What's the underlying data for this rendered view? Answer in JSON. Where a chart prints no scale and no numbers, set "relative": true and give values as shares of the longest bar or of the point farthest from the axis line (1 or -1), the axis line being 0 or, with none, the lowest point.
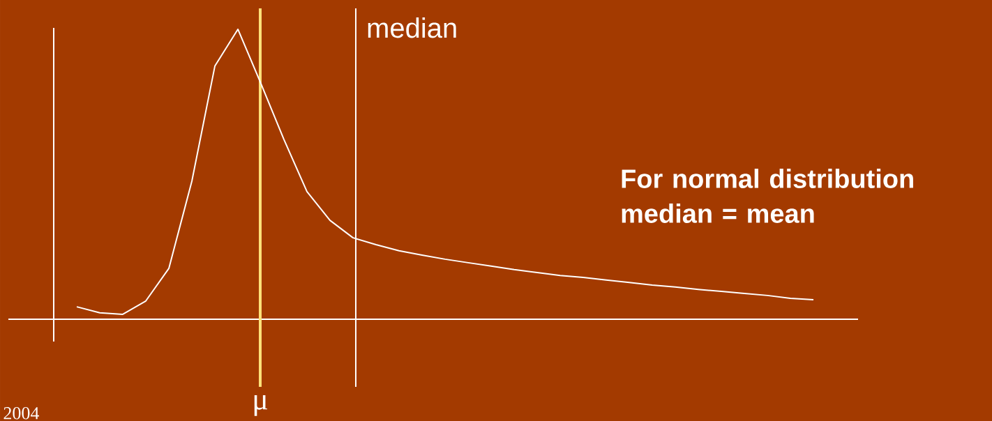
{
  "chart_data": {
    "type": "line",
    "relative": true,
    "categories": [
      null,
      null,
      null,
      null,
      null,
      null,
      null,
      null,
      null,
      null,
      null,
      null,
      null,
      null,
      null,
      null,
      null,
      null,
      null,
      null,
      null,
      null,
      null,
      null,
      null,
      null,
      null,
      null,
      null,
      null,
      null,
      null,
      null
    ],
    "series": [
      {
        "color": "#ffffff",
        "values": [
          0.043,
          0.022,
          0.017,
          0.063,
          0.175,
          0.476,
          0.873,
          1,
          0.813,
          0.62,
          0.44,
          0.341,
          0.281,
          0.257,
          0.236,
          0.221,
          0.207,
          0.195,
          0.183,
          0.171,
          0.161,
          0.151,
          0.144,
          0.135,
          0.127,
          0.118,
          0.111,
          0.103,
          0.096,
          0.089,
          0.082,
          0.072,
          0.067
        ]
      }
    ],
    "tick_labels": false,
    "marker": "none",
    "line_style": "solid",
    "annotations": [
      "μ",
      "median",
      "For normal distribution median = mean",
      "2004"
    ]
  }
}
